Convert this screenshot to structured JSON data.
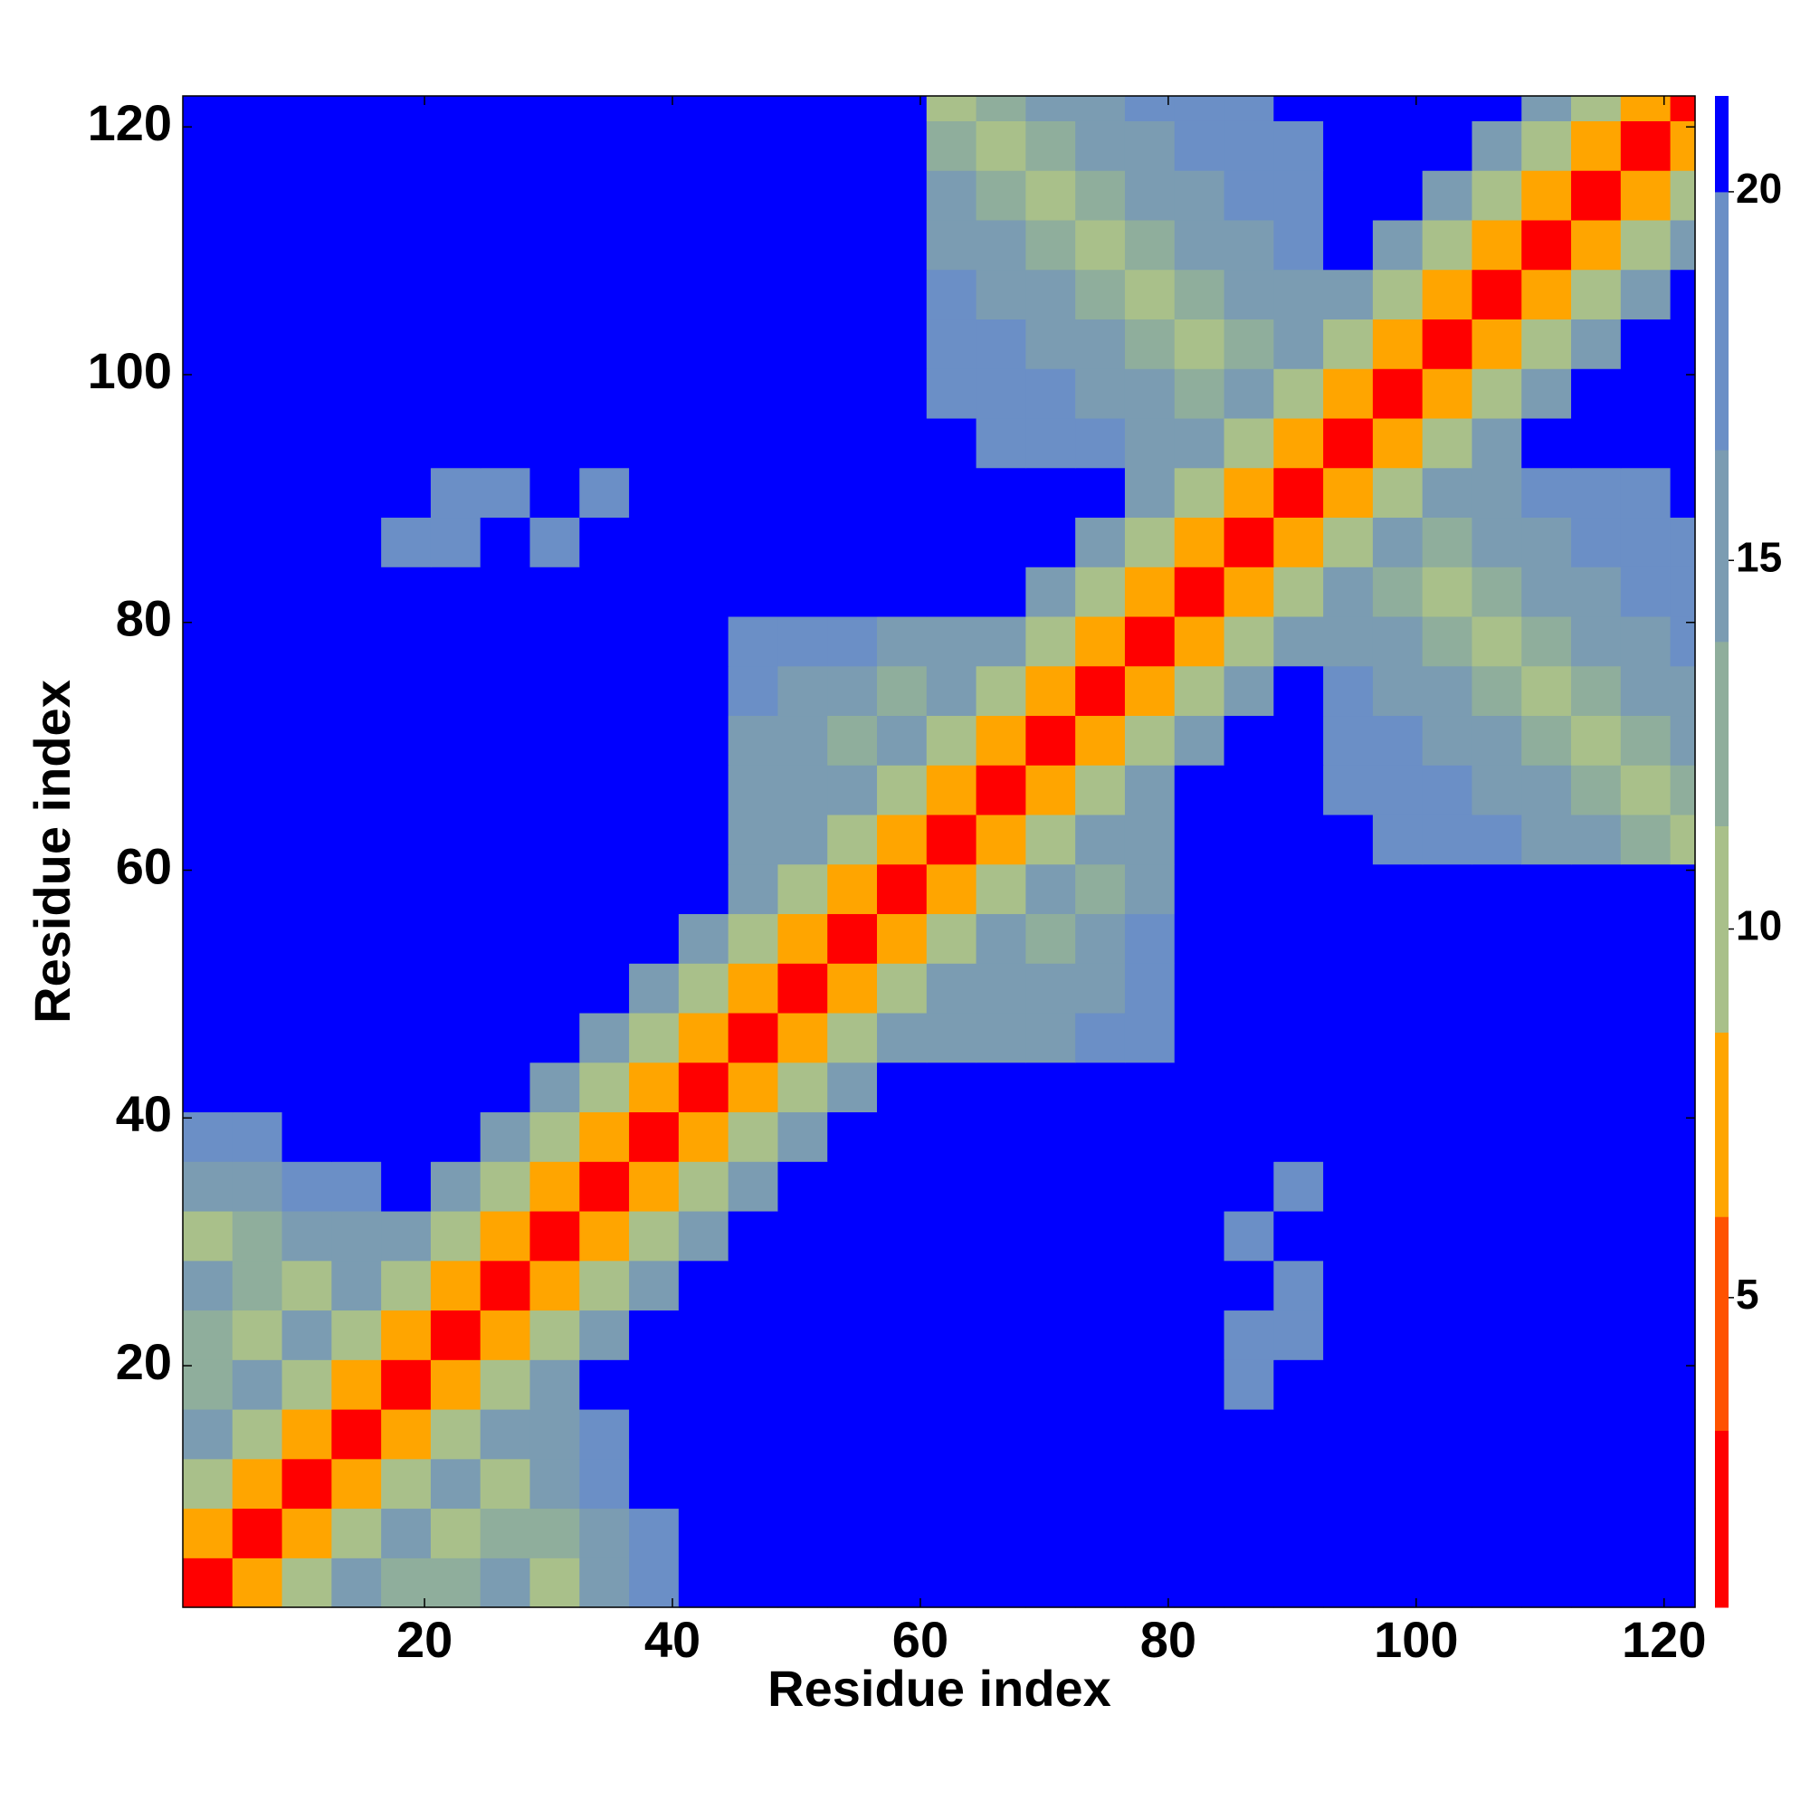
{
  "chart_data": {
    "type": "heatmap",
    "xlabel": "Residue index",
    "ylabel": "Residue index",
    "x_edges": [
      0.5,
      4.5,
      8.5,
      12.5,
      16.5,
      20.5,
      24.5,
      28.5,
      32.5,
      36.5,
      40.5,
      44.5,
      48.5,
      52.5,
      56.5,
      60.5,
      64.5,
      68.5,
      72.5,
      76.5,
      80.5,
      84.5,
      88.5,
      92.5,
      96.5,
      100.5,
      104.5,
      108.5,
      112.5,
      116.5,
      120.5,
      122.5
    ],
    "y_edges": [
      0.5,
      4.5,
      8.5,
      12.5,
      16.5,
      20.5,
      24.5,
      28.5,
      32.5,
      36.5,
      40.5,
      44.5,
      48.5,
      52.5,
      56.5,
      60.5,
      64.5,
      68.5,
      72.5,
      76.5,
      80.5,
      84.5,
      88.5,
      92.5,
      96.5,
      100.5,
      104.5,
      108.5,
      112.5,
      116.5,
      120.5,
      122.5
    ],
    "xlim": [
      0.5,
      122.5
    ],
    "ylim": [
      0.5,
      122.5
    ],
    "xticks": [
      20,
      40,
      60,
      80,
      100,
      120
    ],
    "yticks": [
      20,
      40,
      60,
      80,
      100,
      120
    ],
    "z": [
      [
        3,
        7,
        11,
        16,
        13,
        13,
        14,
        11,
        15,
        18,
        22,
        22,
        22,
        22,
        22,
        22,
        22,
        22,
        22,
        22,
        22,
        22,
        22,
        22,
        22,
        22,
        22,
        22,
        22,
        22,
        22
      ],
      [
        7,
        3,
        7,
        11,
        16,
        11,
        12,
        12,
        16,
        19,
        22,
        22,
        22,
        22,
        22,
        22,
        22,
        22,
        22,
        22,
        22,
        22,
        22,
        22,
        22,
        22,
        22,
        22,
        22,
        22,
        22
      ],
      [
        11,
        7,
        3,
        7,
        11,
        16,
        10,
        14,
        17,
        22,
        22,
        22,
        22,
        22,
        22,
        22,
        22,
        22,
        22,
        22,
        22,
        22,
        22,
        22,
        22,
        22,
        22,
        22,
        22,
        22,
        22
      ],
      [
        16,
        11,
        7,
        3,
        7,
        11,
        16,
        15,
        18,
        22,
        22,
        22,
        22,
        22,
        22,
        22,
        22,
        22,
        22,
        22,
        22,
        22,
        22,
        22,
        22,
        22,
        22,
        22,
        22,
        22,
        22
      ],
      [
        13,
        16,
        11,
        7,
        3,
        7,
        11,
        16,
        22,
        22,
        22,
        22,
        22,
        22,
        22,
        22,
        22,
        22,
        22,
        22,
        22,
        18,
        22,
        22,
        22,
        22,
        22,
        22,
        22,
        22,
        22
      ],
      [
        13,
        11,
        16,
        11,
        7,
        3,
        7,
        11,
        16,
        22,
        22,
        22,
        22,
        22,
        22,
        22,
        22,
        22,
        22,
        22,
        22,
        19,
        18,
        22,
        22,
        22,
        22,
        22,
        22,
        22,
        22
      ],
      [
        14,
        12,
        10,
        16,
        11,
        7,
        3,
        7,
        11,
        16,
        22,
        22,
        22,
        22,
        22,
        22,
        22,
        22,
        22,
        22,
        22,
        22,
        20,
        22,
        22,
        22,
        22,
        22,
        22,
        22,
        22
      ],
      [
        11,
        12,
        14,
        15,
        16,
        11,
        7,
        3,
        7,
        11,
        16,
        22,
        22,
        22,
        22,
        22,
        22,
        22,
        22,
        22,
        22,
        20,
        22,
        22,
        22,
        22,
        22,
        22,
        22,
        22,
        22
      ],
      [
        15,
        16,
        17,
        18,
        22,
        16,
        11,
        7,
        3,
        7,
        11,
        16,
        22,
        22,
        22,
        22,
        22,
        22,
        22,
        22,
        22,
        22,
        19,
        22,
        22,
        22,
        22,
        22,
        22,
        22,
        22
      ],
      [
        18,
        19,
        22,
        22,
        22,
        22,
        16,
        11,
        7,
        3,
        7,
        11,
        16,
        22,
        22,
        22,
        22,
        22,
        22,
        22,
        22,
        22,
        22,
        22,
        22,
        22,
        22,
        22,
        22,
        22,
        22
      ],
      [
        22,
        22,
        22,
        22,
        22,
        22,
        22,
        16,
        11,
        7,
        3,
        7,
        11,
        16,
        22,
        22,
        22,
        22,
        22,
        22,
        22,
        22,
        22,
        22,
        22,
        22,
        22,
        22,
        22,
        22,
        22
      ],
      [
        22,
        22,
        22,
        22,
        22,
        22,
        22,
        22,
        16,
        11,
        7,
        3,
        7,
        11,
        16,
        16,
        15,
        16,
        17,
        19,
        22,
        22,
        22,
        22,
        22,
        22,
        22,
        22,
        22,
        22,
        22
      ],
      [
        22,
        22,
        22,
        22,
        22,
        22,
        22,
        22,
        22,
        16,
        11,
        7,
        3,
        7,
        11,
        16,
        14,
        14,
        15,
        18,
        22,
        22,
        22,
        22,
        22,
        22,
        22,
        22,
        22,
        22,
        22
      ],
      [
        22,
        22,
        22,
        22,
        22,
        22,
        22,
        22,
        22,
        22,
        16,
        11,
        7,
        3,
        7,
        11,
        16,
        13,
        14,
        17,
        22,
        22,
        22,
        22,
        22,
        22,
        22,
        22,
        22,
        22,
        22
      ],
      [
        22,
        22,
        22,
        22,
        22,
        22,
        22,
        22,
        22,
        22,
        22,
        16,
        11,
        7,
        3,
        7,
        11,
        16,
        12,
        15,
        22,
        22,
        22,
        22,
        22,
        22,
        22,
        22,
        22,
        22,
        22
      ],
      [
        22,
        22,
        22,
        22,
        22,
        22,
        22,
        22,
        22,
        22,
        22,
        16,
        16,
        11,
        7,
        3,
        7,
        11,
        16,
        14,
        22,
        22,
        22,
        22,
        20,
        18,
        17,
        15,
        14,
        12,
        11
      ],
      [
        22,
        22,
        22,
        22,
        22,
        22,
        22,
        22,
        22,
        22,
        22,
        15,
        14,
        16,
        11,
        7,
        3,
        7,
        11,
        16,
        22,
        22,
        22,
        20,
        18,
        17,
        15,
        14,
        12,
        11,
        12
      ],
      [
        22,
        22,
        22,
        22,
        22,
        22,
        22,
        22,
        22,
        22,
        22,
        16,
        14,
        13,
        16,
        11,
        7,
        3,
        7,
        11,
        16,
        22,
        22,
        18,
        17,
        15,
        14,
        12,
        11,
        12,
        14
      ],
      [
        22,
        22,
        22,
        22,
        22,
        22,
        22,
        22,
        22,
        22,
        22,
        17,
        15,
        14,
        12,
        16,
        11,
        7,
        3,
        7,
        11,
        16,
        22,
        17,
        15,
        14,
        12,
        11,
        12,
        14,
        15
      ],
      [
        22,
        22,
        22,
        22,
        22,
        22,
        22,
        22,
        22,
        22,
        22,
        19,
        18,
        17,
        15,
        14,
        16,
        11,
        7,
        3,
        7,
        11,
        16,
        15,
        14,
        12,
        11,
        12,
        14,
        15,
        17
      ],
      [
        22,
        22,
        22,
        22,
        22,
        22,
        22,
        22,
        22,
        22,
        22,
        22,
        22,
        22,
        22,
        22,
        22,
        16,
        11,
        7,
        3,
        7,
        11,
        16,
        12,
        11,
        12,
        14,
        15,
        17,
        18
      ],
      [
        22,
        22,
        22,
        22,
        18,
        19,
        22,
        20,
        22,
        22,
        22,
        22,
        22,
        22,
        22,
        22,
        22,
        22,
        16,
        11,
        7,
        3,
        7,
        11,
        16,
        12,
        14,
        15,
        17,
        18,
        20
      ],
      [
        22,
        22,
        22,
        22,
        22,
        18,
        20,
        22,
        19,
        22,
        22,
        22,
        22,
        22,
        22,
        22,
        22,
        22,
        22,
        16,
        11,
        7,
        3,
        7,
        11,
        16,
        15,
        17,
        18,
        20,
        22
      ],
      [
        22,
        22,
        22,
        22,
        22,
        22,
        22,
        22,
        22,
        22,
        22,
        22,
        22,
        22,
        22,
        22,
        20,
        18,
        17,
        15,
        16,
        11,
        7,
        3,
        7,
        11,
        16,
        22,
        22,
        22,
        22
      ],
      [
        22,
        22,
        22,
        22,
        22,
        22,
        22,
        22,
        22,
        22,
        22,
        22,
        22,
        22,
        22,
        20,
        18,
        17,
        15,
        14,
        12,
        16,
        11,
        7,
        3,
        7,
        11,
        16,
        22,
        22,
        22
      ],
      [
        22,
        22,
        22,
        22,
        22,
        22,
        22,
        22,
        22,
        22,
        22,
        22,
        22,
        22,
        22,
        18,
        17,
        15,
        14,
        12,
        11,
        12,
        16,
        11,
        7,
        3,
        7,
        11,
        16,
        22,
        22
      ],
      [
        22,
        22,
        22,
        22,
        22,
        22,
        22,
        22,
        22,
        22,
        22,
        22,
        22,
        22,
        22,
        17,
        15,
        14,
        12,
        11,
        12,
        14,
        15,
        16,
        11,
        7,
        3,
        7,
        11,
        16,
        22
      ],
      [
        22,
        22,
        22,
        22,
        22,
        22,
        22,
        22,
        22,
        22,
        22,
        22,
        22,
        22,
        22,
        15,
        14,
        12,
        11,
        12,
        14,
        15,
        17,
        22,
        16,
        11,
        7,
        3,
        7,
        11,
        16
      ],
      [
        22,
        22,
        22,
        22,
        22,
        22,
        22,
        22,
        22,
        22,
        22,
        22,
        22,
        22,
        22,
        14,
        12,
        11,
        12,
        14,
        15,
        17,
        18,
        22,
        22,
        16,
        11,
        7,
        3,
        7,
        11
      ],
      [
        22,
        22,
        22,
        22,
        22,
        22,
        22,
        22,
        22,
        22,
        22,
        22,
        22,
        22,
        22,
        12,
        11,
        12,
        14,
        15,
        17,
        18,
        20,
        22,
        22,
        22,
        16,
        11,
        7,
        3,
        7
      ],
      [
        22,
        22,
        22,
        22,
        22,
        22,
        22,
        22,
        22,
        22,
        22,
        22,
        22,
        22,
        22,
        11,
        12,
        14,
        15,
        17,
        18,
        20,
        22,
        22,
        22,
        22,
        22,
        16,
        11,
        7,
        3
      ]
    ],
    "color_levels": [
      0.8,
      3.2,
      6.1,
      8.6,
      11.4,
      13.9,
      16.5,
      20,
      21.3
    ],
    "colors": [
      "#ff0000",
      "#ff5200",
      "#ffa500",
      "#a9c08a",
      "#8fae9c",
      "#7b9cb2",
      "#6b8fc6",
      "#0000ff"
    ],
    "zlim": [
      0.8,
      21.3
    ],
    "zticks": [
      5,
      10,
      15,
      20
    ]
  }
}
